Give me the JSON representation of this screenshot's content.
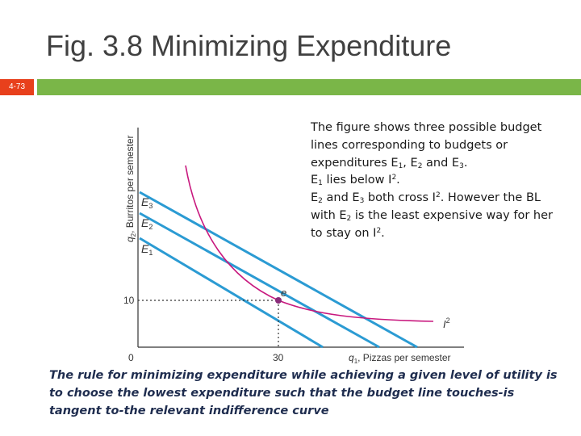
{
  "slide": {
    "title": "Fig. 3.8 Minimizing Expenditure",
    "number": "4-73",
    "colors": {
      "tag": "#e8401c",
      "bar": "#7ab648",
      "budget_lines": "#2b9bd3",
      "indifference_curve": "#c8187e",
      "point": "#8a2c7a"
    }
  },
  "chart": {
    "y_label_q": "q",
    "y_label_sub": "2",
    "y_label_text": ", Burritos per semester",
    "x_label_q": "q",
    "x_label_sub": "1",
    "x_label_text": ", Pizzas per semester",
    "y_tick": "10",
    "x_tick": "30",
    "origin": "0",
    "point_label": "e",
    "curve_label": "I",
    "curve_label_sup": "2",
    "lines": [
      {
        "letter": "E",
        "sub": "3"
      },
      {
        "letter": "E",
        "sub": "2"
      },
      {
        "letter": "E",
        "sub": "1"
      }
    ]
  },
  "chart_data": {
    "type": "line",
    "x_tick_values": [
      0,
      30
    ],
    "y_tick_values": [
      0,
      10
    ],
    "tangency_point": {
      "label": "e",
      "x": 30,
      "y": 10
    },
    "series": [
      {
        "name": "E3",
        "kind": "budget line"
      },
      {
        "name": "E2",
        "kind": "budget line",
        "passes_through": [
          30,
          10
        ]
      },
      {
        "name": "E1",
        "kind": "budget line"
      },
      {
        "name": "I2",
        "kind": "indifference curve",
        "touches": [
          30,
          10
        ]
      }
    ],
    "grid": false
  },
  "explanation": {
    "p1a": "The figure shows three possible budget lines corresponding to budgets or expenditures E",
    "p1_s1": "1",
    "p1b": ", E",
    "p1_s2": "2",
    "p1c": " and E",
    "p1_s3": "3",
    "p1d": ".",
    "p2a": "E",
    "p2_s1": "1",
    "p2b": " lies below I",
    "p2_sup": "2",
    "p2c": ".",
    "p3a": "E",
    "p3_s1": "2",
    "p3b": " and E",
    "p3_s2": "3",
    "p3c": " both cross I",
    "p3_sup1": "2",
    "p3d": ". However the BL with E",
    "p3_s3": "2",
    "p3e": " is the least expensive way for her to stay on I",
    "p3_sup2": "2",
    "p3f": "."
  },
  "rule_text": "The rule for minimizing expenditure while achieving a given level of utility is to choose the lowest expenditure such that the budget line touches-is tangent to-the relevant indifference curve"
}
